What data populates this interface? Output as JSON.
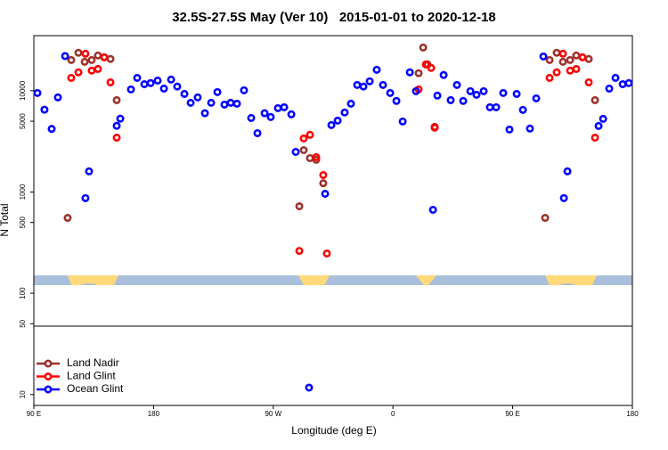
{
  "chart_data": {
    "type": "scatter",
    "title": "32.5S-27.5S May (Ver 10)   2015-01-01 to 2020-12-18",
    "x_label": "Longitude (deg E)",
    "y_label": "N Total",
    "log_y": true,
    "legend": "lower-left",
    "xlim": [
      90,
      540
    ],
    "ylim": [
      7.8,
      35000
    ],
    "xticks": [
      {
        "value": 90,
        "label": "90 E"
      },
      180,
      {
        "value": 270,
        "label": "90 W"
      },
      {
        "value": 360,
        "label": "0"
      },
      {
        "value": 450,
        "label": "90 E"
      },
      {
        "value": 540,
        "label": "180"
      }
    ],
    "yticks": [
      10,
      50,
      100,
      500,
      1000,
      5000,
      10000
    ],
    "series": [
      {
        "name": "Land Nadir",
        "color": "#a0302a",
        "x": [
          115.4,
          118.1,
          123.5,
          128.2,
          133.5,
          138.2,
          142.9,
          147.6,
          152.3,
          289.6,
          292.9,
          297.6,
          302.3,
          307.6,
          379.3,
          382.7,
          386,
          391.4,
          474.4,
          477.8,
          483.1,
          487.8,
          493.2,
          497.8,
          502.5,
          507.2,
          511.9
        ],
        "values": [
          555,
          20100,
          23700,
          19300,
          20100,
          22300,
          21400,
          20600,
          8070,
          723,
          2590,
          2160,
          2080,
          1220,
          14900,
          26700,
          18200,
          4400,
          555,
          20100,
          23700,
          19300,
          20100,
          22300,
          21400,
          20600,
          8070
        ]
      },
      {
        "name": "Land Glint",
        "color": "#ff0000",
        "x": [
          118.1,
          123.5,
          128.8,
          133.5,
          138.2,
          142.9,
          147.6,
          152.3,
          289.6,
          292.9,
          297.6,
          302.3,
          307.6,
          310.3,
          379.3,
          384.7,
          388.7,
          391.4,
          477.8,
          483.1,
          487.8,
          493.2,
          497.8,
          502.5,
          507.2,
          511.9
        ],
        "values": [
          13400,
          15200,
          23200,
          15800,
          16400,
          21400,
          12100,
          3440,
          262,
          3380,
          3670,
          2210,
          1470,
          247,
          10300,
          18200,
          16800,
          4310,
          13400,
          15200,
          23200,
          15800,
          16400,
          21400,
          12100,
          3440
        ]
      },
      {
        "name": "Ocean Glint",
        "color": "#0000ff",
        "x": [
          92.7,
          98,
          103.4,
          108.1,
          113.5,
          128.8,
          131.5,
          152.3,
          155,
          163,
          167.7,
          173.1,
          177.8,
          183.1,
          187.8,
          193.2,
          197.8,
          203.2,
          207.9,
          213.2,
          218.6,
          223.3,
          228,
          233.3,
          238,
          242.7,
          248,
          253.4,
          258.1,
          263.5,
          268.1,
          273.5,
          278.2,
          283.6,
          286.9,
          296.9,
          309,
          313.7,
          318.4,
          323.7,
          328.4,
          333.1,
          337.8,
          342.5,
          347.8,
          352.5,
          357.9,
          362.6,
          367.3,
          372.7,
          377.3,
          390.1,
          393.4,
          398.1,
          403.4,
          408.1,
          412.8,
          418.2,
          422.8,
          428.2,
          432.9,
          437.6,
          442.9,
          447.6,
          453,
          457.7,
          463,
          467.7,
          473.1,
          488.5,
          491.2,
          514.6,
          518,
          522.6,
          527.3,
          532.7,
          537.3
        ],
        "values": [
          9500,
          6500,
          4200,
          8600,
          22000,
          870,
          1600,
          4500,
          5300,
          10300,
          13400,
          11600,
          11900,
          12600,
          10500,
          12900,
          11000,
          9300,
          7600,
          8600,
          6000,
          7600,
          9700,
          7300,
          7600,
          7450,
          10100,
          5380,
          3810,
          6000,
          5500,
          6730,
          6870,
          5850,
          2490,
          11.7,
          960,
          4580,
          5070,
          6100,
          7450,
          11400,
          11000,
          12400,
          16100,
          11400,
          9500,
          7930,
          4970,
          15200,
          9900,
          667,
          8950,
          14300,
          8070,
          11400,
          7930,
          9900,
          9120,
          9900,
          6870,
          6870,
          9500,
          4140,
          9300,
          6470,
          4230,
          8410,
          21800,
          870,
          1600,
          4490,
          5280,
          10500,
          13400,
          11600,
          11900
        ]
      }
    ]
  }
}
